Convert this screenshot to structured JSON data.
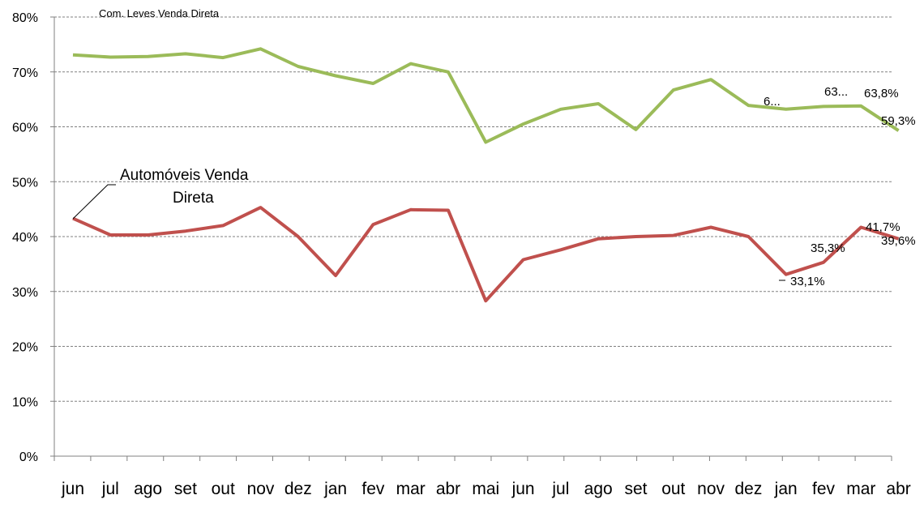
{
  "chart_data": {
    "type": "line",
    "title": "",
    "xlabel": "",
    "ylabel": "",
    "ylim": [
      0,
      80
    ],
    "y_ticks": [
      "0%",
      "10%",
      "20%",
      "30%",
      "40%",
      "50%",
      "60%",
      "70%",
      "80%"
    ],
    "grid": true,
    "legend": "none",
    "categories": [
      "jun",
      "jul",
      "ago",
      "set",
      "out",
      "nov",
      "dez",
      "jan",
      "fev",
      "mar",
      "abr",
      "mai",
      "jun",
      "jul",
      "ago",
      "set",
      "out",
      "nov",
      "dez",
      "jan",
      "fev",
      "mar",
      "abr"
    ],
    "series": [
      {
        "name": "Com. Leves Venda Direta",
        "color": "#9bbb59",
        "values": [
          73.1,
          72.7,
          72.8,
          73.3,
          72.6,
          74.2,
          71.0,
          69.3,
          67.9,
          71.5,
          70.0,
          57.2,
          60.5,
          63.2,
          64.2,
          59.5,
          66.7,
          68.6,
          63.9,
          63.2,
          63.7,
          63.8,
          59.3
        ],
        "data_labels": {
          "19": "6...",
          "21": "63...",
          "22a": "63,8%",
          "22": "59,3%"
        }
      },
      {
        "name": "Automóveis Venda Direta",
        "color": "#c0504d",
        "values": [
          43.3,
          40.3,
          40.3,
          41.0,
          42.0,
          45.3,
          40.0,
          32.9,
          42.2,
          44.9,
          44.8,
          28.3,
          35.8,
          37.6,
          39.6,
          40.0,
          40.2,
          41.7,
          40.0,
          33.1,
          35.3,
          41.7,
          39.6
        ],
        "data_labels": {
          "19": "33,1%",
          "20": "35,3%",
          "21": "41,7%",
          "22": "39,6%"
        }
      }
    ]
  }
}
